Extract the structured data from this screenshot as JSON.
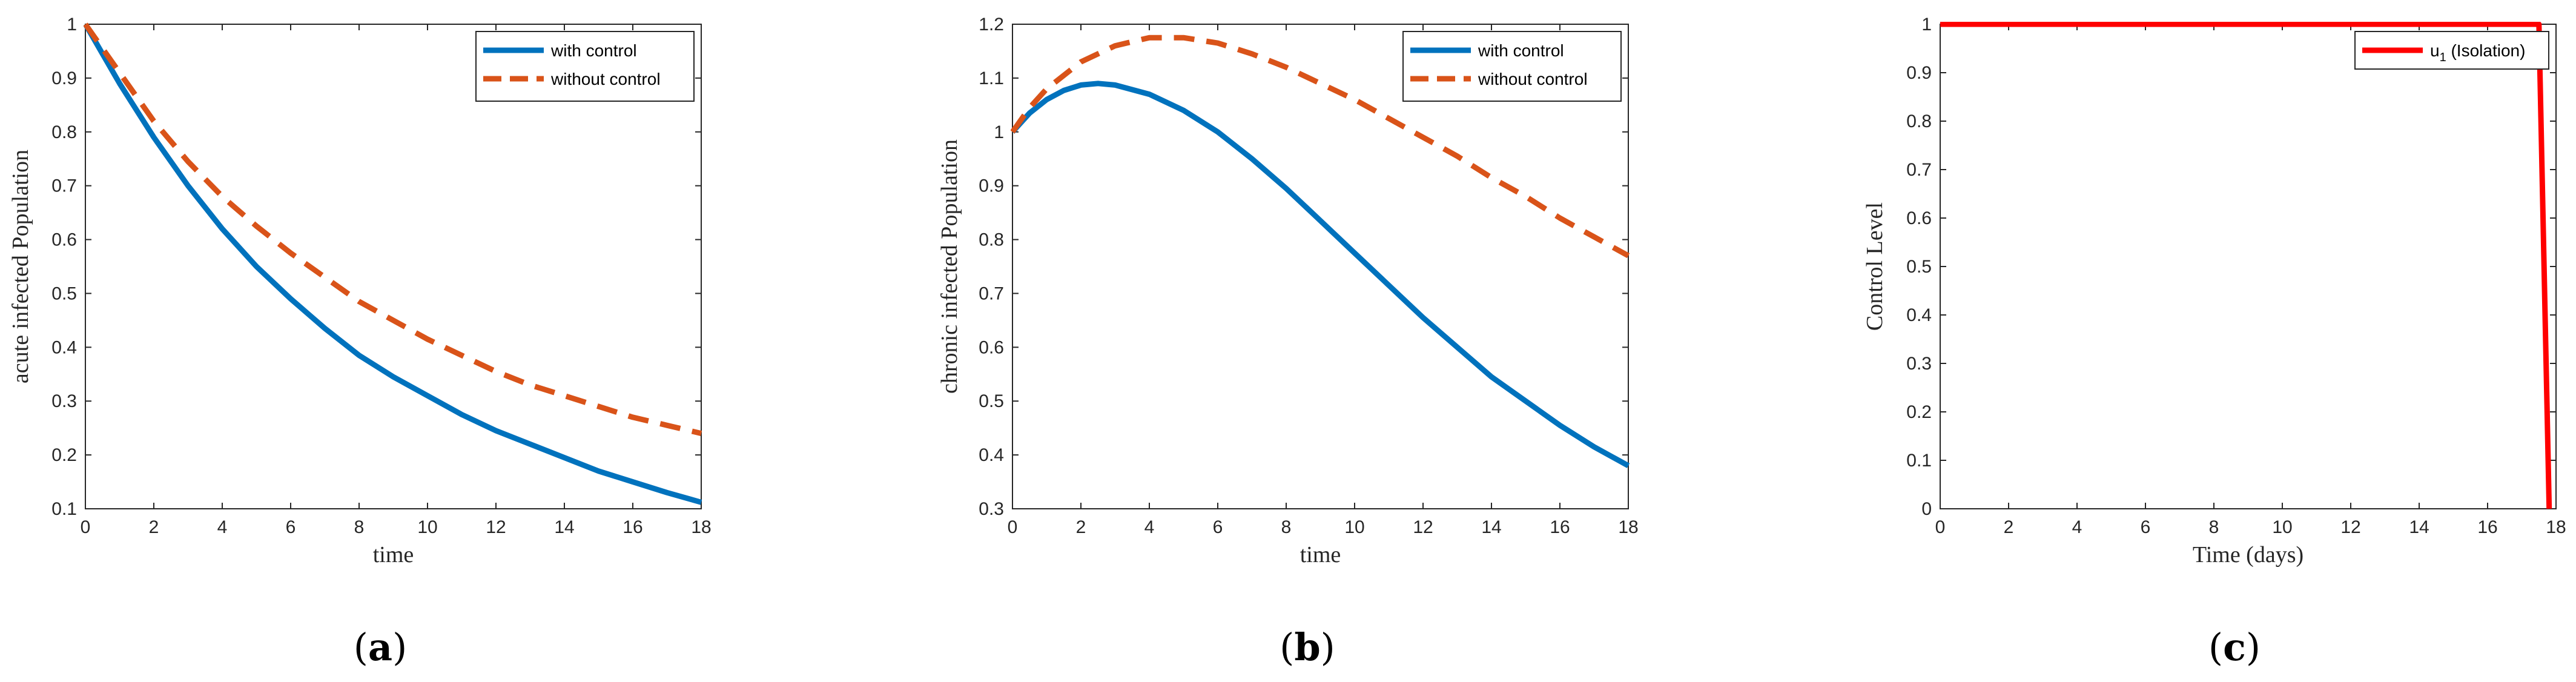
{
  "colors": {
    "with_control": "#0072BD",
    "without_control": "#D95319",
    "u1": "#FF0000",
    "axis": "#262626"
  },
  "chart_data": [
    {
      "type": "line",
      "panel_label": "a",
      "xlabel": "time",
      "ylabel": "acute infected Population",
      "xlim": [
        0,
        18
      ],
      "ylim": [
        0.1,
        1
      ],
      "xticks": [
        0,
        2,
        4,
        6,
        8,
        10,
        12,
        14,
        16,
        18
      ],
      "yticks": [
        0.1,
        0.2,
        0.3,
        0.4,
        0.5,
        0.6,
        0.7,
        0.8,
        0.9,
        1
      ],
      "ytick_labels": [
        "0.1",
        "0.2",
        "0.3",
        "0.4",
        "0.5",
        "0.6",
        "0.7",
        "0.8",
        "0.9",
        "1"
      ],
      "legend_position": "top-right",
      "series": [
        {
          "name": "with control",
          "style": "solid",
          "color": "#0072BD",
          "x": [
            0,
            1,
            2,
            3,
            4,
            5,
            6,
            7,
            8,
            9,
            10,
            11,
            12,
            13,
            14,
            15,
            16,
            17,
            18
          ],
          "y": [
            1.0,
            0.89,
            0.79,
            0.7,
            0.62,
            0.55,
            0.49,
            0.435,
            0.385,
            0.345,
            0.31,
            0.275,
            0.245,
            0.22,
            0.195,
            0.17,
            0.15,
            0.13,
            0.112
          ]
        },
        {
          "name": "without control",
          "style": "dashed",
          "color": "#D95319",
          "x": [
            0,
            1,
            2,
            3,
            4,
            5,
            6,
            7,
            8,
            9,
            10,
            11,
            12,
            13,
            14,
            15,
            16,
            17,
            18
          ],
          "y": [
            1.0,
            0.91,
            0.82,
            0.745,
            0.68,
            0.625,
            0.575,
            0.53,
            0.485,
            0.45,
            0.415,
            0.385,
            0.355,
            0.33,
            0.31,
            0.29,
            0.27,
            0.255,
            0.24
          ]
        }
      ]
    },
    {
      "type": "line",
      "panel_label": "b",
      "xlabel": "time",
      "ylabel": "chronic infected Population",
      "xlim": [
        0,
        18
      ],
      "ylim": [
        0.3,
        1.2
      ],
      "xticks": [
        0,
        2,
        4,
        6,
        8,
        10,
        12,
        14,
        16,
        18
      ],
      "yticks": [
        0.3,
        0.4,
        0.5,
        0.6,
        0.7,
        0.8,
        0.9,
        1.0,
        1.1,
        1.2
      ],
      "ytick_labels": [
        "0.3",
        "0.4",
        "0.5",
        "0.6",
        "0.7",
        "0.8",
        "0.9",
        "1",
        "1.1",
        "1.2"
      ],
      "legend_position": "top-right",
      "series": [
        {
          "name": "with control",
          "style": "solid",
          "color": "#0072BD",
          "x": [
            0,
            0.5,
            1,
            1.5,
            2,
            2.5,
            3,
            4,
            5,
            6,
            7,
            8,
            9,
            10,
            11,
            12,
            13,
            14,
            15,
            16,
            17,
            18
          ],
          "y": [
            1.0,
            1.035,
            1.06,
            1.077,
            1.087,
            1.09,
            1.087,
            1.07,
            1.04,
            1.0,
            0.95,
            0.895,
            0.835,
            0.775,
            0.715,
            0.655,
            0.6,
            0.545,
            0.5,
            0.455,
            0.415,
            0.38
          ]
        },
        {
          "name": "without control",
          "style": "dashed",
          "color": "#D95319",
          "x": [
            0,
            0.5,
            1,
            2,
            3,
            4,
            5,
            6,
            7,
            8,
            9,
            10,
            11,
            12,
            13,
            14,
            15,
            16,
            17,
            18
          ],
          "y": [
            1.0,
            1.045,
            1.08,
            1.13,
            1.16,
            1.175,
            1.175,
            1.165,
            1.145,
            1.12,
            1.09,
            1.06,
            1.025,
            0.99,
            0.955,
            0.915,
            0.88,
            0.84,
            0.805,
            0.77
          ]
        }
      ]
    },
    {
      "type": "line",
      "panel_label": "c",
      "xlabel": "Time (days)",
      "ylabel": "Control Level",
      "xlim": [
        0,
        18
      ],
      "ylim": [
        0,
        1
      ],
      "xticks": [
        0,
        2,
        4,
        6,
        8,
        10,
        12,
        14,
        16,
        18
      ],
      "yticks": [
        0,
        0.1,
        0.2,
        0.3,
        0.4,
        0.5,
        0.6,
        0.7,
        0.8,
        0.9,
        1
      ],
      "ytick_labels": [
        "0",
        "0.1",
        "0.2",
        "0.3",
        "0.4",
        "0.5",
        "0.6",
        "0.7",
        "0.8",
        "0.9",
        "1"
      ],
      "legend_position": "top-right",
      "series": [
        {
          "name": "u1 (Isolation)",
          "legend_main": "u",
          "legend_sub": "1",
          "legend_rest": " (Isolation)",
          "style": "solid",
          "color": "#FF0000",
          "x": [
            0,
            17.5,
            17.8
          ],
          "y": [
            1,
            1,
            0
          ]
        }
      ]
    }
  ]
}
